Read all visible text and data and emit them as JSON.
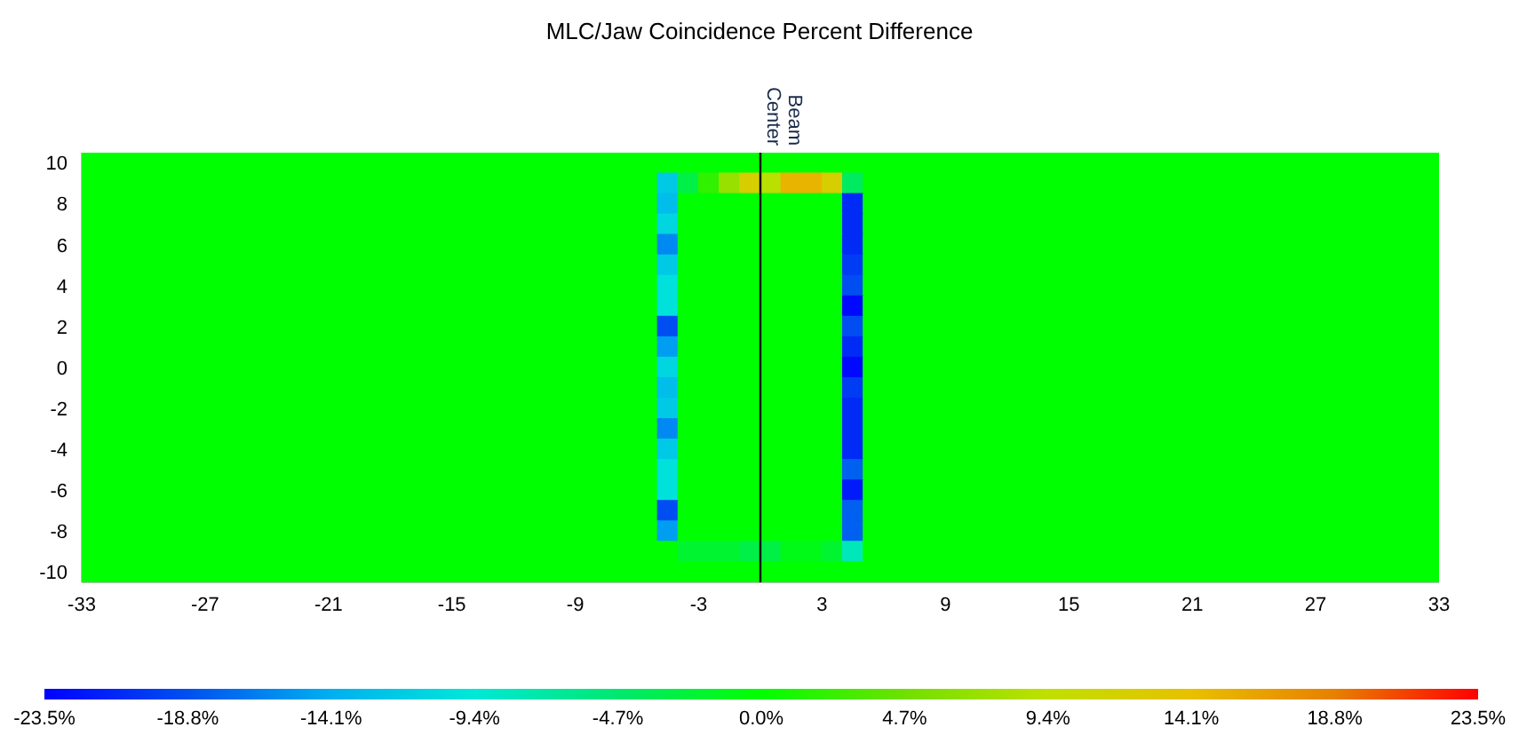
{
  "chart_data": {
    "type": "heatmap",
    "title": "MLC/Jaw Coincidence Percent Difference",
    "x": [
      -32.5,
      -31.5,
      -30.5,
      -29.5,
      -28.5,
      -27.5,
      -26.5,
      -25.5,
      -24.5,
      -23.5,
      -22.5,
      -21.5,
      -20.5,
      -19.5,
      -18.5,
      -17.5,
      -16.5,
      -15.5,
      -14.5,
      -13.5,
      -12.5,
      -11.5,
      -10.5,
      -9.5,
      -8.5,
      -7.5,
      -6.5,
      -5.5,
      -4.5,
      -3.5,
      -2.5,
      -1.5,
      -0.5,
      0.5,
      1.5,
      2.5,
      3.5,
      4.5,
      5.5,
      6.5,
      7.5,
      8.5,
      9.5,
      10.5,
      11.5,
      12.5,
      13.5,
      14.5,
      15.5,
      16.5,
      17.5,
      18.5,
      19.5,
      20.5,
      21.5,
      22.5,
      23.5,
      24.5,
      25.5,
      26.5,
      27.5,
      28.5,
      29.5,
      30.5,
      31.5,
      32.5
    ],
    "y": [
      10,
      9,
      8,
      7,
      6,
      5,
      4,
      3,
      2,
      1,
      0,
      -1,
      -2,
      -3,
      -4,
      -5,
      -6,
      -7,
      -8,
      -9,
      -10
    ],
    "xlim": [
      -33,
      33
    ],
    "xticks": [
      -33,
      -27,
      -21,
      -15,
      -9,
      -3,
      3,
      9,
      15,
      21,
      27,
      33
    ],
    "ylim": [
      -10.5,
      10.5
    ],
    "yticks": [
      -10,
      -8,
      -6,
      -4,
      -2,
      0,
      2,
      4,
      6,
      8,
      10
    ],
    "clim": [
      -23.5,
      23.5
    ],
    "cticks": [
      {
        "value": -23.5,
        "label": "-23.5%"
      },
      {
        "value": -18.8,
        "label": "-18.8%"
      },
      {
        "value": -14.1,
        "label": "-14.1%"
      },
      {
        "value": -9.4,
        "label": "-9.4%"
      },
      {
        "value": -4.7,
        "label": "-4.7%"
      },
      {
        "value": 0,
        "label": "0.0%"
      },
      {
        "value": 4.7,
        "label": "4.7%"
      },
      {
        "value": 9.4,
        "label": "9.4%"
      },
      {
        "value": 14.1,
        "label": "14.1%"
      },
      {
        "value": 18.8,
        "label": "18.8%"
      },
      {
        "value": 23.5,
        "label": "23.5%"
      }
    ],
    "ref_lines": [
      {
        "axis": "x",
        "value": 0,
        "label": "Beam Center",
        "color": "#000000"
      }
    ],
    "cells": [
      [
        0,
        0,
        0,
        0,
        0,
        0,
        0,
        0,
        0,
        0,
        0,
        0,
        0,
        0,
        0,
        0,
        0,
        0,
        0,
        0,
        0,
        0,
        0,
        0,
        0,
        0,
        0,
        0,
        0,
        0,
        0,
        0,
        0,
        0,
        0,
        0,
        0,
        0,
        0,
        0,
        0,
        0,
        0,
        0,
        0,
        0,
        0,
        0,
        0,
        0,
        0,
        0,
        0,
        0,
        0,
        0,
        0,
        0,
        0,
        0,
        0,
        0,
        0,
        0,
        0,
        0
      ],
      [
        0,
        0,
        0,
        0,
        0,
        0,
        0,
        0,
        0,
        0,
        0,
        0,
        0,
        0,
        0,
        0,
        0,
        0,
        0,
        0,
        0,
        0,
        0,
        0,
        0,
        0,
        0,
        0,
        -12,
        -3,
        2,
        7,
        12,
        9,
        15,
        15,
        12,
        -4,
        0,
        0,
        0,
        0,
        0,
        0,
        0,
        0,
        0,
        0,
        0,
        0,
        0,
        0,
        0,
        0,
        0,
        0,
        0,
        0,
        0,
        0,
        0,
        0,
        0,
        0,
        0,
        0
      ],
      [
        0,
        0,
        0,
        0,
        0,
        0,
        0,
        0,
        0,
        0,
        0,
        0,
        0,
        0,
        0,
        0,
        0,
        0,
        0,
        0,
        0,
        0,
        0,
        0,
        0,
        0,
        0,
        0,
        -13,
        0,
        0,
        0,
        0,
        0,
        0,
        0,
        0,
        -21,
        0,
        0,
        0,
        0,
        0,
        0,
        0,
        0,
        0,
        0,
        0,
        0,
        0,
        0,
        0,
        0,
        0,
        0,
        0,
        0,
        0,
        0,
        0,
        0,
        0,
        0,
        0,
        0
      ],
      [
        0,
        0,
        0,
        0,
        0,
        0,
        0,
        0,
        0,
        0,
        0,
        0,
        0,
        0,
        0,
        0,
        0,
        0,
        0,
        0,
        0,
        0,
        0,
        0,
        0,
        0,
        0,
        0,
        -11,
        0,
        0,
        0,
        0,
        0,
        0,
        0,
        0,
        -21,
        0,
        0,
        0,
        0,
        0,
        0,
        0,
        0,
        0,
        0,
        0,
        0,
        0,
        0,
        0,
        0,
        0,
        0,
        0,
        0,
        0,
        0,
        0,
        0,
        0,
        0,
        0,
        0
      ],
      [
        0,
        0,
        0,
        0,
        0,
        0,
        0,
        0,
        0,
        0,
        0,
        0,
        0,
        0,
        0,
        0,
        0,
        0,
        0,
        0,
        0,
        0,
        0,
        0,
        0,
        0,
        0,
        0,
        -16,
        0,
        0,
        0,
        0,
        0,
        0,
        0,
        0,
        -21,
        0,
        0,
        0,
        0,
        0,
        0,
        0,
        0,
        0,
        0,
        0,
        0,
        0,
        0,
        0,
        0,
        0,
        0,
        0,
        0,
        0,
        0,
        0,
        0,
        0,
        0,
        0,
        0
      ],
      [
        0,
        0,
        0,
        0,
        0,
        0,
        0,
        0,
        0,
        0,
        0,
        0,
        0,
        0,
        0,
        0,
        0,
        0,
        0,
        0,
        0,
        0,
        0,
        0,
        0,
        0,
        0,
        0,
        -12,
        0,
        0,
        0,
        0,
        0,
        0,
        0,
        0,
        -20,
        0,
        0,
        0,
        0,
        0,
        0,
        0,
        0,
        0,
        0,
        0,
        0,
        0,
        0,
        0,
        0,
        0,
        0,
        0,
        0,
        0,
        0,
        0,
        0,
        0,
        0,
        0,
        0
      ],
      [
        0,
        0,
        0,
        0,
        0,
        0,
        0,
        0,
        0,
        0,
        0,
        0,
        0,
        0,
        0,
        0,
        0,
        0,
        0,
        0,
        0,
        0,
        0,
        0,
        0,
        0,
        0,
        0,
        -10,
        0,
        0,
        0,
        0,
        0,
        0,
        0,
        0,
        -19,
        0,
        0,
        0,
        0,
        0,
        0,
        0,
        0,
        0,
        0,
        0,
        0,
        0,
        0,
        0,
        0,
        0,
        0,
        0,
        0,
        0,
        0,
        0,
        0,
        0,
        0,
        0,
        0
      ],
      [
        0,
        0,
        0,
        0,
        0,
        0,
        0,
        0,
        0,
        0,
        0,
        0,
        0,
        0,
        0,
        0,
        0,
        0,
        0,
        0,
        0,
        0,
        0,
        0,
        0,
        0,
        0,
        0,
        -10,
        0,
        0,
        0,
        0,
        0,
        0,
        0,
        0,
        -23,
        0,
        0,
        0,
        0,
        0,
        0,
        0,
        0,
        0,
        0,
        0,
        0,
        0,
        0,
        0,
        0,
        0,
        0,
        0,
        0,
        0,
        0,
        0,
        0,
        0,
        0,
        0,
        0
      ],
      [
        0,
        0,
        0,
        0,
        0,
        0,
        0,
        0,
        0,
        0,
        0,
        0,
        0,
        0,
        0,
        0,
        0,
        0,
        0,
        0,
        0,
        0,
        0,
        0,
        0,
        0,
        0,
        0,
        -19,
        0,
        0,
        0,
        0,
        0,
        0,
        0,
        0,
        -19,
        0,
        0,
        0,
        0,
        0,
        0,
        0,
        0,
        0,
        0,
        0,
        0,
        0,
        0,
        0,
        0,
        0,
        0,
        0,
        0,
        0,
        0,
        0,
        0,
        0,
        0,
        0,
        0
      ],
      [
        0,
        0,
        0,
        0,
        0,
        0,
        0,
        0,
        0,
        0,
        0,
        0,
        0,
        0,
        0,
        0,
        0,
        0,
        0,
        0,
        0,
        0,
        0,
        0,
        0,
        0,
        0,
        0,
        -15,
        0,
        0,
        0,
        0,
        0,
        0,
        0,
        0,
        -21,
        0,
        0,
        0,
        0,
        0,
        0,
        0,
        0,
        0,
        0,
        0,
        0,
        0,
        0,
        0,
        0,
        0,
        0,
        0,
        0,
        0,
        0,
        0,
        0,
        0,
        0,
        0,
        0
      ],
      [
        0,
        0,
        0,
        0,
        0,
        0,
        0,
        0,
        0,
        0,
        0,
        0,
        0,
        0,
        0,
        0,
        0,
        0,
        0,
        0,
        0,
        0,
        0,
        0,
        0,
        0,
        0,
        0,
        -11,
        0,
        0,
        0,
        0,
        0,
        0,
        0,
        0,
        -23,
        0,
        0,
        0,
        0,
        0,
        0,
        0,
        0,
        0,
        0,
        0,
        0,
        0,
        0,
        0,
        0,
        0,
        0,
        0,
        0,
        0,
        0,
        0,
        0,
        0,
        0,
        0,
        0
      ],
      [
        0,
        0,
        0,
        0,
        0,
        0,
        0,
        0,
        0,
        0,
        0,
        0,
        0,
        0,
        0,
        0,
        0,
        0,
        0,
        0,
        0,
        0,
        0,
        0,
        0,
        0,
        0,
        0,
        -13,
        0,
        0,
        0,
        0,
        0,
        0,
        0,
        0,
        -20,
        0,
        0,
        0,
        0,
        0,
        0,
        0,
        0,
        0,
        0,
        0,
        0,
        0,
        0,
        0,
        0,
        0,
        0,
        0,
        0,
        0,
        0,
        0,
        0,
        0,
        0,
        0,
        0
      ],
      [
        0,
        0,
        0,
        0,
        0,
        0,
        0,
        0,
        0,
        0,
        0,
        0,
        0,
        0,
        0,
        0,
        0,
        0,
        0,
        0,
        0,
        0,
        0,
        0,
        0,
        0,
        0,
        0,
        -12,
        0,
        0,
        0,
        0,
        0,
        0,
        0,
        0,
        -21,
        0,
        0,
        0,
        0,
        0,
        0,
        0,
        0,
        0,
        0,
        0,
        0,
        0,
        0,
        0,
        0,
        0,
        0,
        0,
        0,
        0,
        0,
        0,
        0,
        0,
        0,
        0,
        0
      ],
      [
        0,
        0,
        0,
        0,
        0,
        0,
        0,
        0,
        0,
        0,
        0,
        0,
        0,
        0,
        0,
        0,
        0,
        0,
        0,
        0,
        0,
        0,
        0,
        0,
        0,
        0,
        0,
        0,
        -16,
        0,
        0,
        0,
        0,
        0,
        0,
        0,
        0,
        -21,
        0,
        0,
        0,
        0,
        0,
        0,
        0,
        0,
        0,
        0,
        0,
        0,
        0,
        0,
        0,
        0,
        0,
        0,
        0,
        0,
        0,
        0,
        0,
        0,
        0,
        0,
        0,
        0
      ],
      [
        0,
        0,
        0,
        0,
        0,
        0,
        0,
        0,
        0,
        0,
        0,
        0,
        0,
        0,
        0,
        0,
        0,
        0,
        0,
        0,
        0,
        0,
        0,
        0,
        0,
        0,
        0,
        0,
        -12,
        0,
        0,
        0,
        0,
        0,
        0,
        0,
        0,
        -21,
        0,
        0,
        0,
        0,
        0,
        0,
        0,
        0,
        0,
        0,
        0,
        0,
        0,
        0,
        0,
        0,
        0,
        0,
        0,
        0,
        0,
        0,
        0,
        0,
        0,
        0,
        0,
        0
      ],
      [
        0,
        0,
        0,
        0,
        0,
        0,
        0,
        0,
        0,
        0,
        0,
        0,
        0,
        0,
        0,
        0,
        0,
        0,
        0,
        0,
        0,
        0,
        0,
        0,
        0,
        0,
        0,
        0,
        -10,
        0,
        0,
        0,
        0,
        0,
        0,
        0,
        0,
        -18,
        0,
        0,
        0,
        0,
        0,
        0,
        0,
        0,
        0,
        0,
        0,
        0,
        0,
        0,
        0,
        0,
        0,
        0,
        0,
        0,
        0,
        0,
        0,
        0,
        0,
        0,
        0,
        0
      ],
      [
        0,
        0,
        0,
        0,
        0,
        0,
        0,
        0,
        0,
        0,
        0,
        0,
        0,
        0,
        0,
        0,
        0,
        0,
        0,
        0,
        0,
        0,
        0,
        0,
        0,
        0,
        0,
        0,
        -10,
        0,
        0,
        0,
        0,
        0,
        0,
        0,
        0,
        -22,
        0,
        0,
        0,
        0,
        0,
        0,
        0,
        0,
        0,
        0,
        0,
        0,
        0,
        0,
        0,
        0,
        0,
        0,
        0,
        0,
        0,
        0,
        0,
        0,
        0,
        0,
        0,
        0
      ],
      [
        0,
        0,
        0,
        0,
        0,
        0,
        0,
        0,
        0,
        0,
        0,
        0,
        0,
        0,
        0,
        0,
        0,
        0,
        0,
        0,
        0,
        0,
        0,
        0,
        0,
        0,
        0,
        0,
        -19,
        0,
        0,
        0,
        0,
        0,
        0,
        0,
        0,
        -18,
        0,
        0,
        0,
        0,
        0,
        0,
        0,
        0,
        0,
        0,
        0,
        0,
        0,
        0,
        0,
        0,
        0,
        0,
        0,
        0,
        0,
        0,
        0,
        0,
        0,
        0,
        0,
        0
      ],
      [
        0,
        0,
        0,
        0,
        0,
        0,
        0,
        0,
        0,
        0,
        0,
        0,
        0,
        0,
        0,
        0,
        0,
        0,
        0,
        0,
        0,
        0,
        0,
        0,
        0,
        0,
        0,
        0,
        -15,
        0,
        0,
        0,
        0,
        0,
        0,
        0,
        0,
        -18,
        0,
        0,
        0,
        0,
        0,
        0,
        0,
        0,
        0,
        0,
        0,
        0,
        0,
        0,
        0,
        0,
        0,
        0,
        0,
        0,
        0,
        0,
        0,
        0,
        0,
        0,
        0,
        0
      ],
      [
        0,
        0,
        0,
        0,
        0,
        0,
        0,
        0,
        0,
        0,
        0,
        0,
        0,
        0,
        0,
        0,
        0,
        0,
        0,
        0,
        0,
        0,
        0,
        0,
        0,
        0,
        0,
        0,
        0,
        -2,
        -2,
        -2,
        -3,
        -3,
        -1,
        -1,
        -2,
        -8,
        0,
        0,
        0,
        0,
        0,
        0,
        0,
        0,
        0,
        0,
        0,
        0,
        0,
        0,
        0,
        0,
        0,
        0,
        0,
        0,
        0,
        0,
        0,
        0,
        0,
        0,
        0,
        0
      ],
      [
        0,
        0,
        0,
        0,
        0,
        0,
        0,
        0,
        0,
        0,
        0,
        0,
        0,
        0,
        0,
        0,
        0,
        0,
        0,
        0,
        0,
        0,
        0,
        0,
        0,
        0,
        0,
        0,
        0,
        0,
        0,
        0,
        0,
        0,
        0,
        0,
        0,
        0,
        0,
        0,
        0,
        0,
        0,
        0,
        0,
        0,
        0,
        0,
        0,
        0,
        0,
        0,
        0,
        0,
        0,
        0,
        0,
        0,
        0,
        0,
        0,
        0,
        0,
        0,
        0,
        0
      ]
    ]
  }
}
